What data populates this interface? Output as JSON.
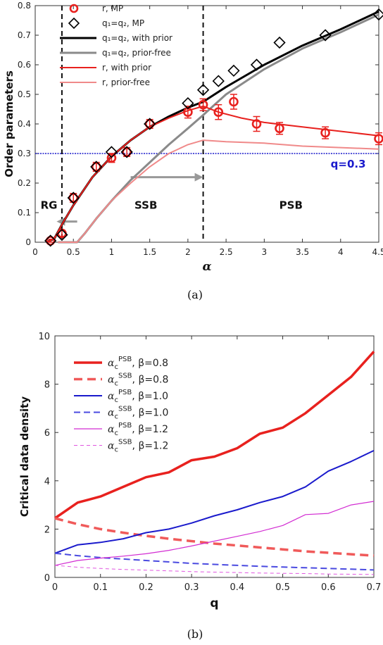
{
  "chart_data": [
    {
      "type": "line",
      "panel_label": "(a)",
      "xlabel": "α",
      "ylabel": "Order parameters",
      "xlim": [
        0,
        4.5
      ],
      "ylim": [
        0,
        0.8
      ],
      "xticks": [
        "0",
        "0.5",
        "1",
        "1.5",
        "2",
        "2.5",
        "3",
        "3.5",
        "4",
        "4.5"
      ],
      "yticks": [
        "0",
        "0.1",
        "0.2",
        "0.3",
        "0.4",
        "0.5",
        "0.6",
        "0.7",
        "0.8"
      ],
      "grid": false,
      "legend": "top-left",
      "regions": [
        {
          "label": "RG",
          "x": 0.18,
          "y": 0.125
        },
        {
          "label": "SSB",
          "x": 1.45,
          "y": 0.125
        },
        {
          "label": "PSB",
          "x": 3.35,
          "y": 0.125
        }
      ],
      "vlines": [
        0.35,
        2.2
      ],
      "hline": {
        "y": 0.3,
        "label": "q=0.3",
        "color": "#1a1acc"
      },
      "arrows": [
        {
          "from": [
            0.55,
            0.07
          ],
          "to": [
            0.28,
            0.07
          ]
        },
        {
          "from": [
            1.25,
            0.22
          ],
          "to": [
            2.2,
            0.22
          ]
        }
      ],
      "series": [
        {
          "name": "r, MP",
          "kind": "markers",
          "marker": "circle",
          "color": "#e8211e",
          "x": [
            0.2,
            0.35,
            0.5,
            0.8,
            1.0,
            1.2,
            1.5,
            2.0,
            2.2,
            2.4,
            2.6,
            2.9,
            3.2,
            3.8,
            4.5
          ],
          "y": [
            0.005,
            0.03,
            0.15,
            0.255,
            0.285,
            0.305,
            0.4,
            0.44,
            0.465,
            0.44,
            0.475,
            0.4,
            0.385,
            0.37,
            0.35
          ],
          "err": [
            0.005,
            0.01,
            0.015,
            0.015,
            0.015,
            0.015,
            0.015,
            0.02,
            0.02,
            0.025,
            0.025,
            0.025,
            0.02,
            0.02,
            0.02
          ]
        },
        {
          "name": "q₁=q₂, MP",
          "kind": "markers",
          "marker": "diamond",
          "color": "#000000",
          "x": [
            0.2,
            0.35,
            0.5,
            0.8,
            1.0,
            1.2,
            1.5,
            2.0,
            2.2,
            2.4,
            2.6,
            2.9,
            3.2,
            3.8,
            4.5
          ],
          "y": [
            0.005,
            0.025,
            0.15,
            0.255,
            0.305,
            0.305,
            0.4,
            0.47,
            0.515,
            0.545,
            0.58,
            0.6,
            0.675,
            0.7,
            0.77
          ]
        },
        {
          "name": "q₁=q₂, with prior",
          "kind": "line",
          "color": "#000000",
          "width": 3,
          "x": [
            0.15,
            0.25,
            0.35,
            0.5,
            0.75,
            1.0,
            1.25,
            1.5,
            1.75,
            2.0,
            2.2,
            2.5,
            3.0,
            3.5,
            4.0,
            4.5
          ],
          "y": [
            0.0,
            0.012,
            0.06,
            0.125,
            0.22,
            0.29,
            0.345,
            0.39,
            0.425,
            0.455,
            0.475,
            0.525,
            0.6,
            0.665,
            0.72,
            0.78
          ]
        },
        {
          "name": "q₁=q₂, prior-free",
          "kind": "line",
          "color": "#8a8a8a",
          "width": 3,
          "x": [
            0.3,
            0.55,
            0.65,
            0.8,
            1.0,
            1.25,
            1.5,
            1.75,
            2.0,
            2.2,
            2.5,
            3.0,
            3.5,
            4.0,
            4.5
          ],
          "y": [
            0.0,
            0.0,
            0.03,
            0.08,
            0.14,
            0.21,
            0.27,
            0.33,
            0.385,
            0.43,
            0.5,
            0.585,
            0.655,
            0.71,
            0.77
          ]
        },
        {
          "name": "r, with prior",
          "kind": "line",
          "color": "#e8211e",
          "width": 2,
          "x": [
            0.15,
            0.25,
            0.35,
            0.5,
            0.75,
            1.0,
            1.25,
            1.5,
            1.75,
            2.0,
            2.2,
            2.4,
            2.7,
            3.0,
            3.5,
            4.0,
            4.5
          ],
          "y": [
            0.0,
            0.012,
            0.06,
            0.125,
            0.22,
            0.29,
            0.345,
            0.39,
            0.42,
            0.445,
            0.46,
            0.44,
            0.42,
            0.405,
            0.39,
            0.375,
            0.36
          ]
        },
        {
          "name": "r, prior-free",
          "kind": "line",
          "color": "#f08a8a",
          "width": 2,
          "x": [
            0.3,
            0.55,
            0.65,
            0.8,
            1.0,
            1.25,
            1.5,
            1.75,
            2.0,
            2.2,
            2.5,
            3.0,
            3.5,
            4.0,
            4.5
          ],
          "y": [
            0.0,
            0.0,
            0.03,
            0.08,
            0.14,
            0.2,
            0.255,
            0.3,
            0.33,
            0.345,
            0.34,
            0.335,
            0.325,
            0.32,
            0.315
          ]
        }
      ]
    },
    {
      "type": "line",
      "panel_label": "(b)",
      "xlabel": "q",
      "ylabel": "Critical data density",
      "xlim": [
        0,
        0.7
      ],
      "ylim": [
        0,
        10
      ],
      "xticks": [
        "0",
        "0.1",
        "0.2",
        "0.3",
        "0.4",
        "0.5",
        "0.6",
        "0.7"
      ],
      "yticks": [
        "0",
        "2",
        "4",
        "6",
        "8",
        "10"
      ],
      "grid": false,
      "legend": "top-left",
      "x": [
        0,
        0.05,
        0.1,
        0.15,
        0.2,
        0.25,
        0.3,
        0.35,
        0.4,
        0.45,
        0.5,
        0.55,
        0.6,
        0.65,
        0.7
      ],
      "series": [
        {
          "name": "PSB, β=0.8",
          "sym": "α",
          "sub": "c",
          "sup": "PSB",
          "beta": "β=0.8",
          "color": "#e8211e",
          "width": 3.5,
          "dash": "",
          "values": [
            2.45,
            3.1,
            3.35,
            3.75,
            4.15,
            4.35,
            4.85,
            5.0,
            5.35,
            5.95,
            6.2,
            6.8,
            7.55,
            8.3,
            9.35
          ]
        },
        {
          "name": "SSB, β=0.8",
          "sym": "α",
          "sub": "c",
          "sup": "SSB",
          "beta": "β=0.8",
          "color": "#f05a5a",
          "width": 3.5,
          "dash": "12,7",
          "values": [
            2.45,
            2.2,
            2.0,
            1.85,
            1.72,
            1.6,
            1.5,
            1.4,
            1.32,
            1.24,
            1.16,
            1.08,
            1.02,
            0.96,
            0.9
          ]
        },
        {
          "name": "PSB, β=1.0",
          "sym": "α",
          "sub": "c",
          "sup": "PSB",
          "beta": "β=1.0",
          "color": "#1a1acc",
          "width": 2,
          "dash": "",
          "values": [
            1.0,
            1.35,
            1.45,
            1.6,
            1.85,
            2.0,
            2.25,
            2.55,
            2.8,
            3.1,
            3.35,
            3.75,
            4.4,
            4.8,
            5.25
          ]
        },
        {
          "name": "SSB, β=1.0",
          "sym": "α",
          "sub": "c",
          "sup": "SSB",
          "beta": "β=1.0",
          "color": "#4a4ae0",
          "width": 2,
          "dash": "9,5",
          "values": [
            1.0,
            0.9,
            0.82,
            0.76,
            0.7,
            0.64,
            0.58,
            0.54,
            0.5,
            0.46,
            0.43,
            0.4,
            0.37,
            0.34,
            0.31
          ]
        },
        {
          "name": "PSB, β=1.2",
          "sym": "α",
          "sub": "c",
          "sup": "PSB",
          "beta": "β=1.2",
          "color": "#d22cd2",
          "width": 1.2,
          "dash": "",
          "values": [
            0.5,
            0.7,
            0.8,
            0.88,
            0.98,
            1.12,
            1.3,
            1.5,
            1.7,
            1.9,
            2.15,
            2.6,
            2.65,
            3.0,
            3.15
          ]
        },
        {
          "name": "SSB, β=1.2",
          "sym": "α",
          "sub": "c",
          "sup": "SSB",
          "beta": "β=1.2",
          "color": "#e055e0",
          "width": 1,
          "dash": "5,4",
          "values": [
            0.5,
            0.42,
            0.37,
            0.33,
            0.3,
            0.27,
            0.24,
            0.22,
            0.2,
            0.18,
            0.17,
            0.16,
            0.14,
            0.13,
            0.12
          ]
        }
      ]
    }
  ]
}
